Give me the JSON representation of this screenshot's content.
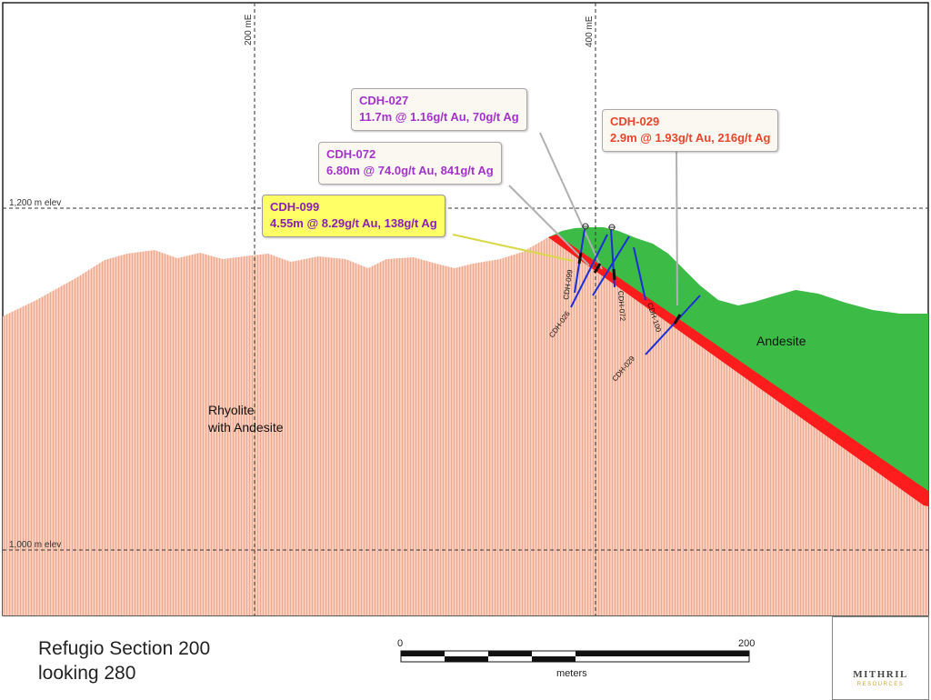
{
  "grid": {
    "easting_labels": [
      "200 mE",
      "400 mE"
    ],
    "elevation_labels": [
      "1,200 m elev",
      "1,000 m elev"
    ]
  },
  "units": {
    "rhyolite": {
      "line1": "Rhyolite",
      "line2": "with Andesite",
      "color": "#f6c2ae"
    },
    "andesite": {
      "label": "Andesite",
      "color": "#3cbb47"
    },
    "vein_color": "#ff1c1c"
  },
  "callouts": {
    "cdh027": {
      "hole": "CDH-027",
      "intercept": "11.7m @ 1.16g/t Au, 70g/t Ag",
      "text_color": "#a332c8"
    },
    "cdh072": {
      "hole": "CDH-072",
      "intercept": "6.80m @ 74.0g/t Au, 841g/t Ag",
      "text_color": "#a332c8"
    },
    "cdh099": {
      "hole": "CDH-099",
      "intercept": "4.55m @ 8.29g/t Au, 138g/t Ag",
      "text_color": "#8b1fb5",
      "fill": "#ffff66"
    },
    "cdh029": {
      "hole": "CDH-029",
      "intercept": "2.9m @ 1.93g/t Au, 216g/t Ag",
      "text_color": "#e8452c"
    }
  },
  "drillhole_labels": [
    "CDH-099",
    "CDH-026",
    "CDH-072",
    "CDH-100",
    "CDH-029"
  ],
  "title": {
    "line1": "Refugio Section 200",
    "line2": "looking 280"
  },
  "scale_bar": {
    "start": "0",
    "end": "200",
    "unit": "meters"
  },
  "logo": {
    "name": "MITHRIL",
    "sub": "RESOURCES"
  }
}
